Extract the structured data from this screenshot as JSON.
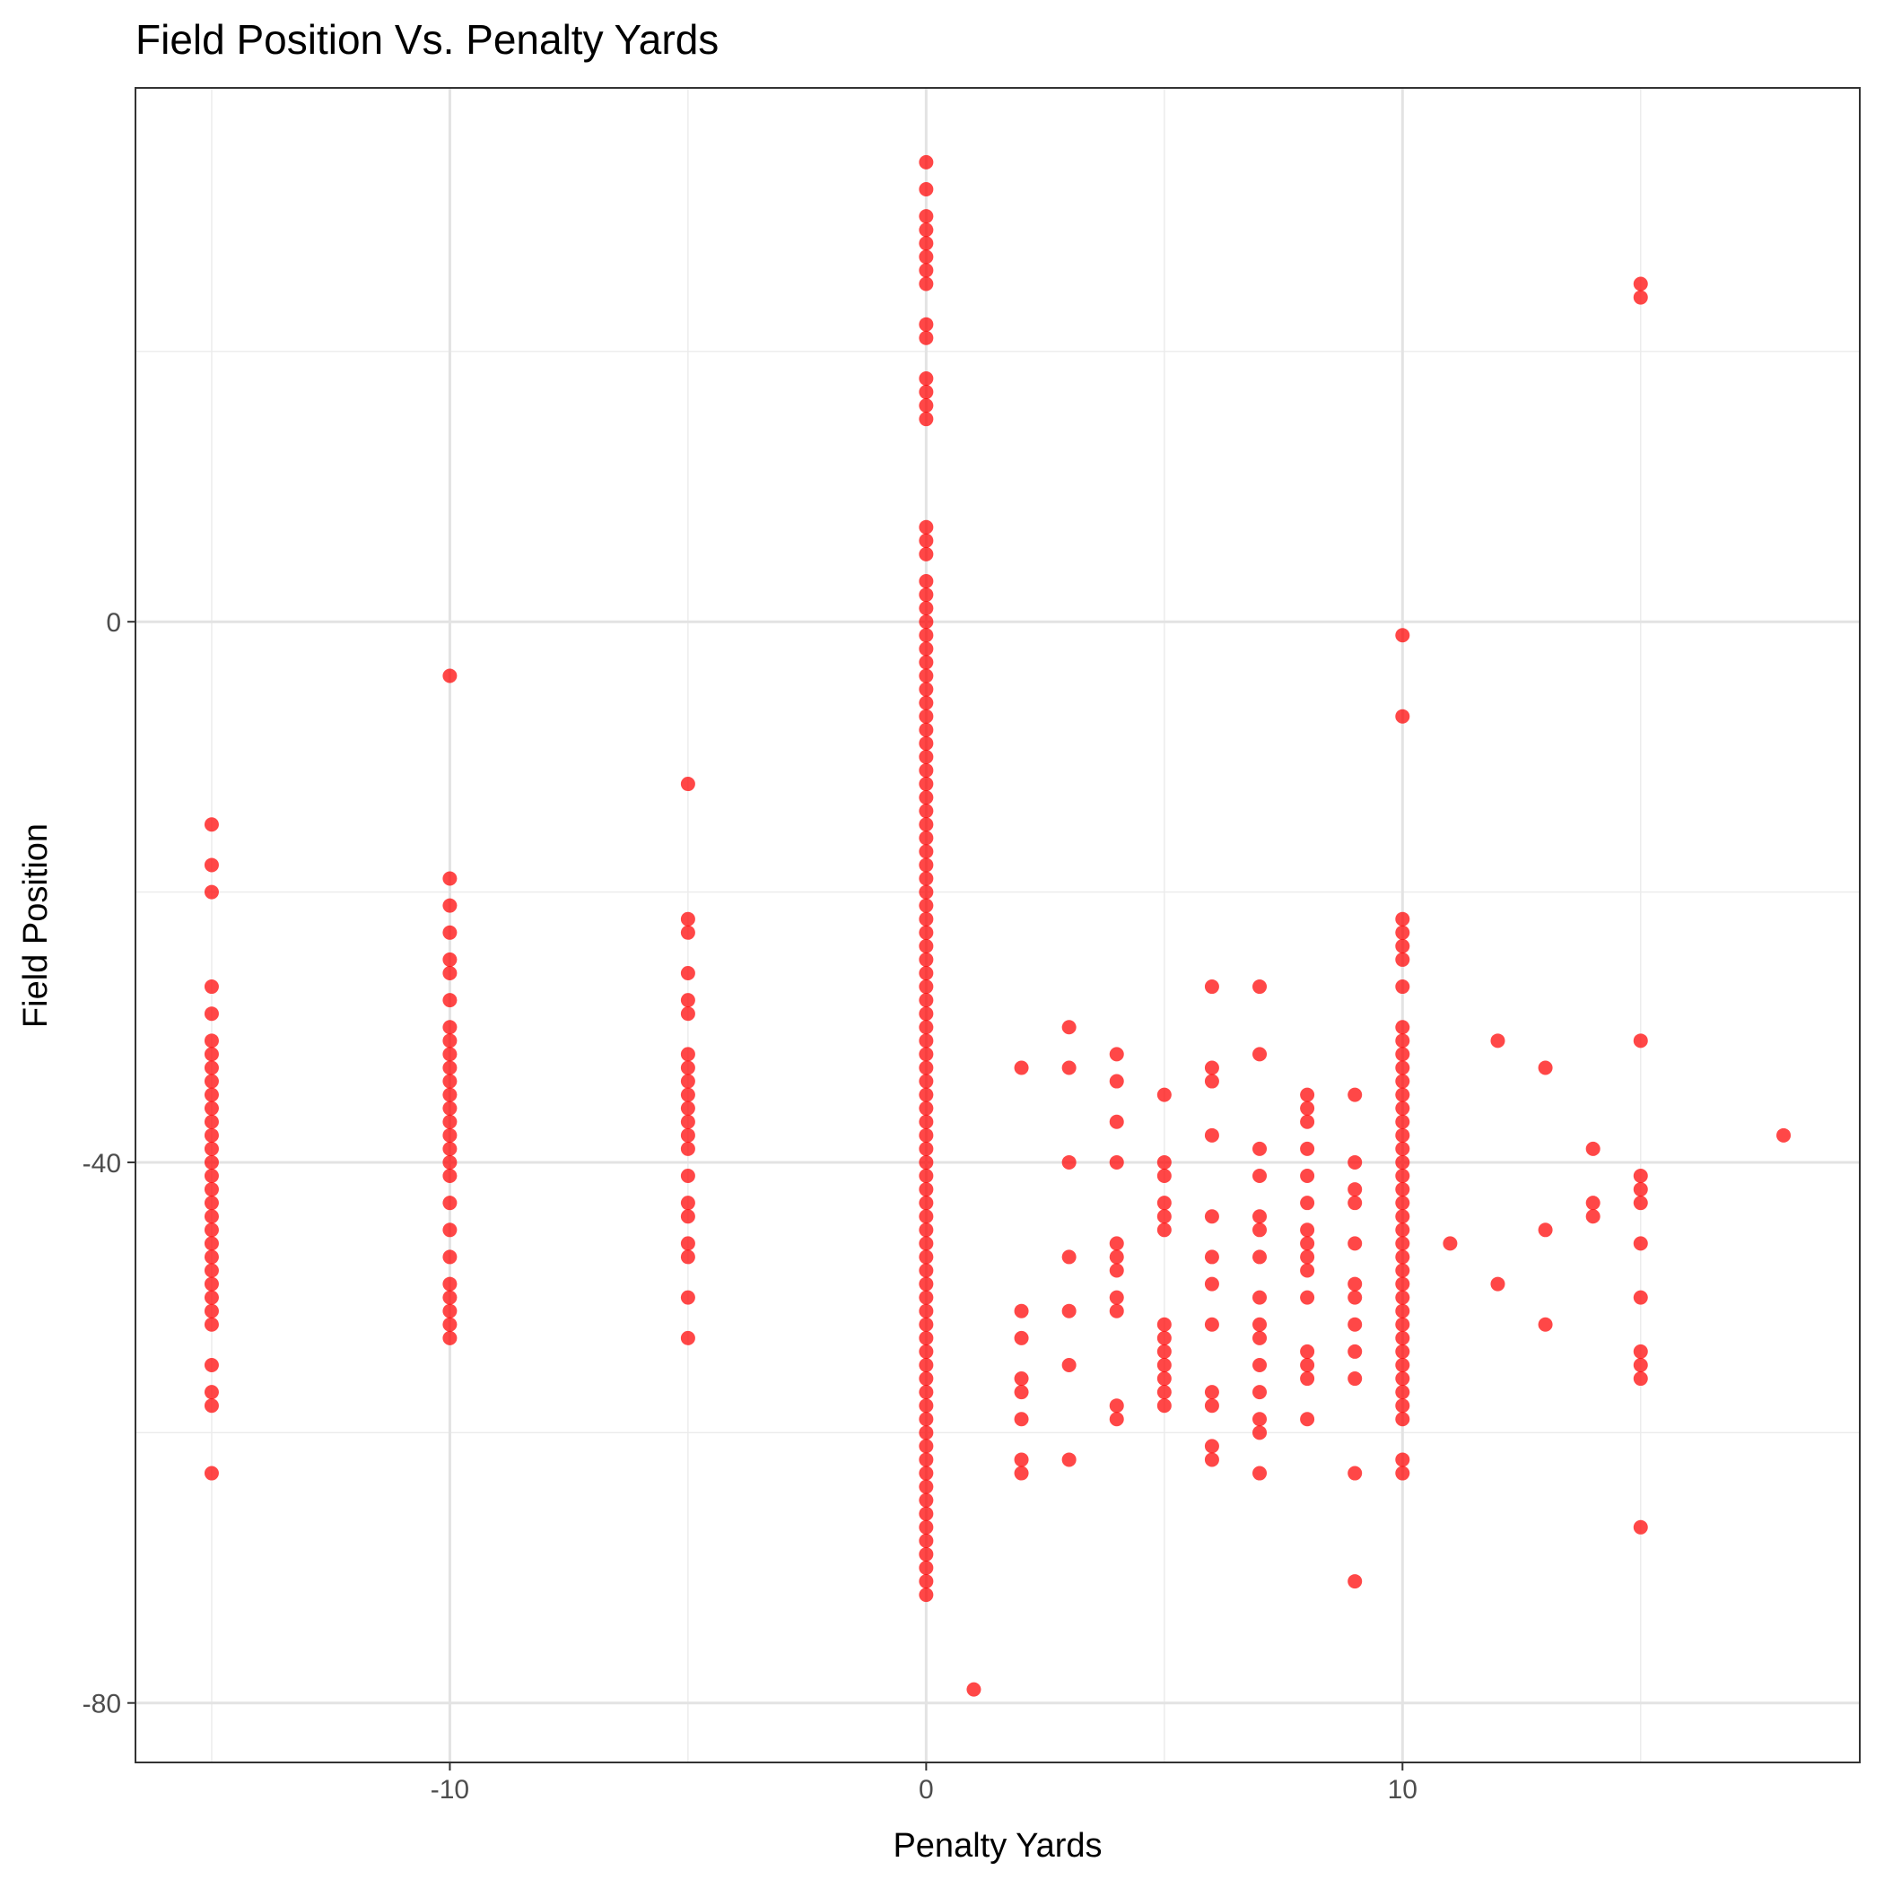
{
  "chart_data": {
    "type": "scatter",
    "title": "Field Position Vs. Penalty Yards",
    "x_label": "Penalty Yards",
    "y_label": "Field Position",
    "color": "#ff0000",
    "xlim": [
      -16.6,
      19.6
    ],
    "ylim": [
      -84.4,
      39.5
    ],
    "xticks": [
      -10,
      0,
      10
    ],
    "yticks": [
      -80,
      -40,
      0
    ],
    "xminorticks": [
      -15,
      -5,
      5,
      15
    ],
    "yminorticks": [
      -60,
      -20,
      20
    ],
    "grid": true,
    "x": [
      -15,
      -15,
      -15,
      -15,
      -15,
      -15,
      -15,
      -15,
      -15,
      -15,
      -15,
      -15,
      -15,
      -15,
      -15,
      -15,
      -15,
      -15,
      -15,
      -15,
      -15,
      -15,
      -15,
      -15,
      -15,
      -15,
      -15,
      -15,
      -15,
      -15,
      -15,
      -10,
      -10,
      -10,
      -10,
      -10,
      -10,
      -10,
      -10,
      -10,
      -10,
      -10,
      -10,
      -10,
      -10,
      -10,
      -10,
      -10,
      -10,
      -10,
      -10,
      -10,
      -10,
      -10,
      -10,
      -10,
      -10,
      -10,
      -5,
      -5,
      -5,
      -5,
      -5,
      -5,
      -5,
      -5,
      -5,
      -5,
      -5,
      -5,
      -5,
      -5,
      -5,
      -5,
      -5,
      -5,
      -5,
      -5,
      -5,
      0,
      0,
      0,
      0,
      0,
      0,
      0,
      0,
      0,
      0,
      0,
      0,
      0,
      0,
      0,
      0,
      0,
      0,
      0,
      0,
      0,
      0,
      0,
      0,
      0,
      0,
      0,
      0,
      0,
      0,
      0,
      0,
      0,
      0,
      0,
      0,
      0,
      0,
      0,
      0,
      0,
      0,
      0,
      0,
      0,
      0,
      0,
      0,
      0,
      0,
      0,
      0,
      0,
      0,
      0,
      0,
      0,
      0,
      0,
      0,
      0,
      0,
      0,
      0,
      0,
      0,
      0,
      0,
      0,
      0,
      0,
      0,
      0,
      0,
      0,
      0,
      0,
      0,
      0,
      0,
      0,
      0,
      0,
      0,
      0,
      0,
      0,
      0,
      0,
      0,
      0,
      0,
      0,
      1,
      2,
      2,
      2,
      2,
      2,
      2,
      2,
      2,
      3,
      3,
      3,
      3,
      3,
      3,
      3,
      4,
      4,
      4,
      4,
      4,
      4,
      4,
      4,
      4,
      4,
      4,
      5,
      5,
      5,
      5,
      5,
      5,
      5,
      5,
      5,
      5,
      5,
      5,
      5,
      6,
      6,
      6,
      6,
      6,
      6,
      6,
      6,
      6,
      6,
      6,
      6,
      7,
      7,
      7,
      7,
      7,
      7,
      7,
      7,
      7,
      7,
      7,
      7,
      7,
      7,
      7,
      8,
      8,
      8,
      8,
      8,
      8,
      8,
      8,
      8,
      8,
      8,
      8,
      8,
      8,
      8,
      9,
      9,
      9,
      9,
      9,
      9,
      9,
      9,
      9,
      9,
      9,
      9,
      10,
      10,
      10,
      10,
      10,
      10,
      10,
      10,
      10,
      10,
      10,
      10,
      10,
      10,
      10,
      10,
      10,
      10,
      10,
      10,
      10,
      10,
      10,
      10,
      10,
      10,
      10,
      10,
      10,
      10,
      10,
      10,
      10,
      10,
      10,
      10,
      10,
      10,
      10,
      11,
      12,
      12,
      13,
      13,
      13,
      14,
      14,
      14,
      15,
      15,
      15,
      15,
      15,
      15,
      15,
      15,
      15,
      15,
      15,
      15,
      18
    ],
    "y": [
      -15,
      -18,
      -20,
      -27,
      -29,
      -31,
      -32,
      -33,
      -34,
      -35,
      -36,
      -37,
      -38,
      -39,
      -40,
      -41,
      -42,
      -43,
      -44,
      -45,
      -46,
      -47,
      -48,
      -49,
      -50,
      -51,
      -52,
      -55,
      -57,
      -58,
      -63,
      -4,
      -19,
      -21,
      -23,
      -25,
      -26,
      -28,
      -30,
      -31,
      -32,
      -33,
      -34,
      -35,
      -36,
      -37,
      -38,
      -39,
      -40,
      -41,
      -43,
      -45,
      -47,
      -49,
      -50,
      -51,
      -52,
      -53,
      -12,
      -22,
      -23,
      -26,
      -28,
      -29,
      -32,
      -33,
      -34,
      -35,
      -36,
      -37,
      -38,
      -39,
      -41,
      -43,
      -44,
      -46,
      -47,
      -50,
      -53,
      34,
      32,
      30,
      29,
      28,
      27,
      26,
      25,
      22,
      21,
      18,
      17,
      16,
      15,
      7,
      6,
      5,
      3,
      2,
      1,
      0,
      -1,
      -2,
      -3,
      -4,
      -5,
      -6,
      -7,
      -8,
      -9,
      -10,
      -11,
      -12,
      -13,
      -14,
      -15,
      -16,
      -17,
      -18,
      -19,
      -20,
      -21,
      -22,
      -23,
      -24,
      -25,
      -26,
      -27,
      -28,
      -29,
      -30,
      -31,
      -32,
      -33,
      -34,
      -35,
      -36,
      -37,
      -38,
      -39,
      -40,
      -41,
      -42,
      -43,
      -44,
      -45,
      -46,
      -47,
      -48,
      -49,
      -50,
      -51,
      -52,
      -53,
      -54,
      -55,
      -56,
      -57,
      -58,
      -59,
      -60,
      -61,
      -62,
      -63,
      -64,
      -65,
      -66,
      -67,
      -68,
      -69,
      -70,
      -71,
      -72,
      -79,
      -33,
      -51,
      -53,
      -56,
      -57,
      -59,
      -62,
      -63,
      -30,
      -33,
      -40,
      -47,
      -51,
      -55,
      -62,
      -32,
      -34,
      -37,
      -40,
      -46,
      -47,
      -48,
      -50,
      -51,
      -58,
      -59,
      -35,
      -40,
      -41,
      -43,
      -44,
      -45,
      -52,
      -53,
      -54,
      -55,
      -56,
      -57,
      -58,
      -27,
      -33,
      -34,
      -38,
      -44,
      -47,
      -49,
      -52,
      -57,
      -58,
      -61,
      -62,
      -27,
      -32,
      -39,
      -41,
      -44,
      -45,
      -47,
      -50,
      -52,
      -53,
      -55,
      -57,
      -59,
      -60,
      -63,
      -35,
      -36,
      -37,
      -39,
      -41,
      -43,
      -45,
      -46,
      -47,
      -48,
      -50,
      -54,
      -55,
      -56,
      -59,
      -35,
      -40,
      -42,
      -43,
      -46,
      -49,
      -50,
      -52,
      -54,
      -56,
      -63,
      -71,
      -1,
      -7,
      -22,
      -23,
      -24,
      -25,
      -27,
      -30,
      -31,
      -32,
      -33,
      -34,
      -35,
      -36,
      -37,
      -38,
      -39,
      -40,
      -41,
      -42,
      -43,
      -44,
      -45,
      -46,
      -47,
      -48,
      -49,
      -50,
      -51,
      -52,
      -53,
      -54,
      -55,
      -56,
      -57,
      -58,
      -59,
      -62,
      -63,
      -46,
      -31,
      -49,
      -33,
      -45,
      -52,
      -39,
      -43,
      -44,
      25,
      24,
      -31,
      -41,
      -42,
      -43,
      -46,
      -50,
      -54,
      -55,
      -56,
      -67,
      -38
    ]
  }
}
